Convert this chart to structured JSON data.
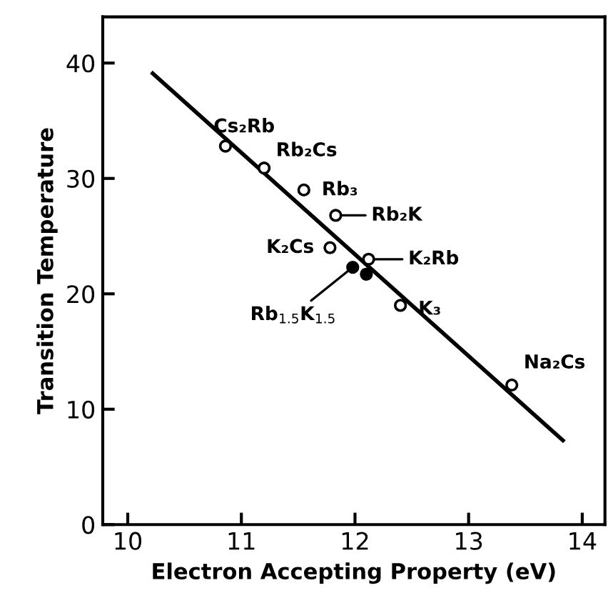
{
  "chart_data": {
    "type": "scatter",
    "xlabel": "Electron Accepting Property (eV)",
    "ylabel": "Transition Temperature",
    "xlim": [
      9.78,
      14.2
    ],
    "ylim": [
      0,
      44
    ],
    "xticks": [
      10,
      11,
      12,
      13,
      14
    ],
    "yticks": [
      0,
      10,
      20,
      30,
      40
    ],
    "grid": false,
    "series": [
      {
        "marker": "circle",
        "color": "#000000",
        "x": [
          10.86,
          11.2,
          11.55,
          11.83,
          11.78,
          12.12,
          12.4,
          13.38
        ],
        "values": [
          32.8,
          30.9,
          29.0,
          26.8,
          24.0,
          23.0,
          19.0,
          12.1
        ]
      },
      {
        "marker": "circle",
        "color": "#000000",
        "x": [
          11.98,
          12.1
        ],
        "values": [
          22.3,
          21.7
        ]
      },
      {
        "type": "line",
        "marker": "none",
        "color": "#000000",
        "x": [
          10.22,
          13.83
        ],
        "values": [
          39.1,
          7.3
        ]
      }
    ],
    "annotations": [
      {
        "text": "Cs₂Rb",
        "x": 10.86,
        "y": 32.8
      },
      {
        "text": "Rb₂Cs",
        "x": 11.2,
        "y": 30.9
      },
      {
        "text": "Rb₃",
        "x": 11.55,
        "y": 29.0
      },
      {
        "text": "Rb₂K",
        "x": 11.83,
        "y": 26.8
      },
      {
        "text": "K₂Cs",
        "x": 11.78,
        "y": 24.0
      },
      {
        "text": "K₂Rb",
        "x": 12.12,
        "y": 23.0
      },
      {
        "text": "Rb$_{1.5}$K$_{1.5}$",
        "x": 11.98,
        "y": 22.3
      },
      {
        "text": "K₃",
        "x": 12.4,
        "y": 19.0
      },
      {
        "text": "Na₂Cs",
        "x": 13.38,
        "y": 12.1
      }
    ]
  }
}
